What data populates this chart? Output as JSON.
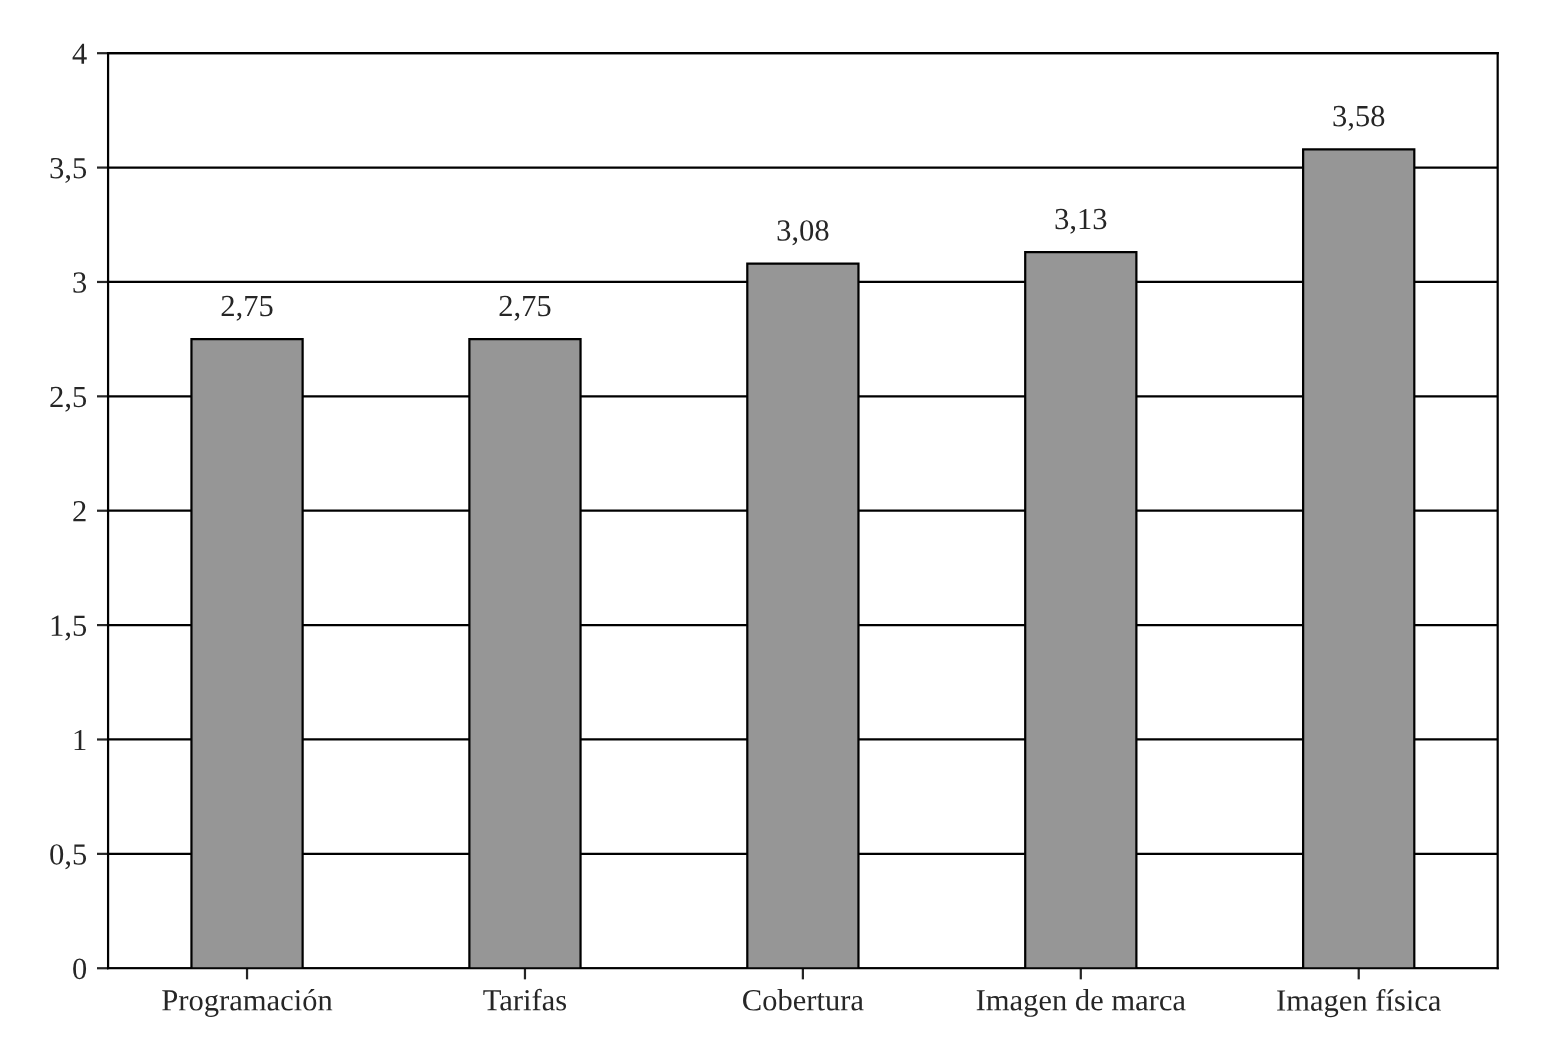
{
  "chart_data": {
    "type": "bar",
    "categories": [
      "Programación",
      "Tarifas",
      "Cobertura",
      "Imagen de marca",
      "Imagen física"
    ],
    "values": [
      2.75,
      2.75,
      3.08,
      3.13,
      3.58
    ],
    "value_labels": [
      "2,75",
      "2,75",
      "3,08",
      "3,13",
      "3,58"
    ],
    "color": "#969696",
    "ylim": [
      0,
      4
    ],
    "yticks": [
      0,
      {
        "value": 0.5,
        "label": "0,5"
      },
      1,
      {
        "value": 1.5,
        "label": "1,5"
      },
      2,
      {
        "value": 2.5,
        "label": "2,5"
      },
      3,
      {
        "value": 3.5,
        "label": "3,5"
      },
      4
    ],
    "grid": "y"
  }
}
